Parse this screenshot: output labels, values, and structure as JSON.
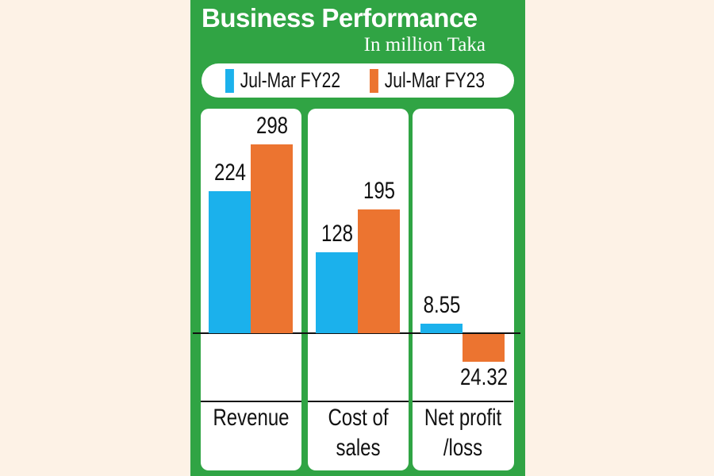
{
  "chart_data": {
    "type": "bar",
    "title": "Business Performance",
    "subtitle": "In million Taka",
    "categories": [
      "Revenue",
      "Cost of sales",
      "Net profit /loss"
    ],
    "category_lines": [
      [
        "Revenue"
      ],
      [
        "Cost of",
        "sales"
      ],
      [
        "Net profit",
        "/loss"
      ]
    ],
    "series": [
      {
        "name": "Jul-Mar FY22",
        "color": "#1bb1ec",
        "values": [
          224,
          128,
          8.55
        ],
        "labels": [
          "224",
          "128",
          "8.55"
        ]
      },
      {
        "name": "Jul-Mar FY23",
        "color": "#ec7430",
        "values": [
          298,
          195,
          -24.32
        ],
        "labels": [
          "298",
          "195",
          "24.32"
        ]
      }
    ],
    "legend": "top"
  }
}
